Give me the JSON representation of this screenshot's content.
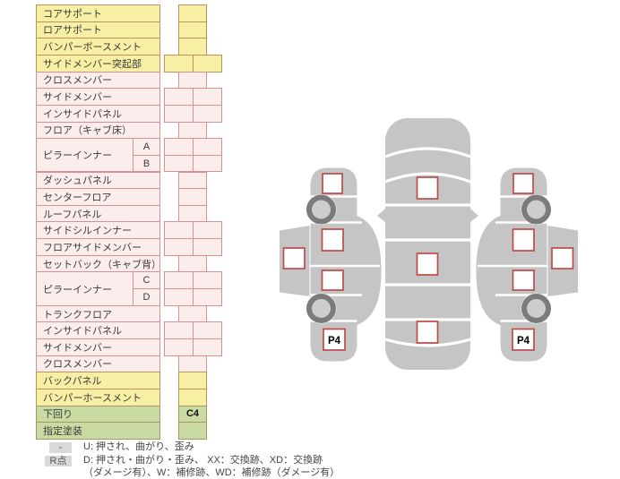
{
  "damage_table": {
    "rows": [
      {
        "label": "コアサポート",
        "palette": "yellow",
        "cells": 1
      },
      {
        "label": "ロアサポート",
        "palette": "yellow",
        "cells": 1
      },
      {
        "label": "バンパーボースメント",
        "palette": "yellow",
        "cells": 1
      },
      {
        "label": "サイドメンバー突起部",
        "palette": "yellow",
        "cells": 2
      },
      {
        "label": "クロスメンバー",
        "palette": "pink",
        "cells": 1
      },
      {
        "label": "サイドメンバー",
        "palette": "pink",
        "cells": 2
      },
      {
        "label": "インサイドパネル",
        "palette": "pink",
        "cells": 2
      },
      {
        "label": "フロア（キャブ床）",
        "palette": "pink",
        "cells": 1
      },
      {
        "label": "ピラーインナー",
        "sub": "A",
        "group": 2,
        "palette": "pink",
        "cells": 2
      },
      {
        "sub": "B",
        "palette": "pink",
        "cells": 2
      },
      {
        "label": "ダッシュパネル",
        "palette": "pink",
        "cells": 1
      },
      {
        "label": "センターフロア",
        "palette": "pink",
        "cells": 1
      },
      {
        "label": "ルーフパネル",
        "palette": "pink",
        "cells": 1
      },
      {
        "label": "サイドシルインナー",
        "palette": "pink",
        "cells": 2
      },
      {
        "label": "フロアサイドメンバー",
        "palette": "pink",
        "cells": 2
      },
      {
        "label": "セットバック（キャブ背）",
        "palette": "pink",
        "cells": 1
      },
      {
        "label": "ピラーインナー",
        "sub": "C",
        "group": 2,
        "palette": "pink",
        "cells": 2
      },
      {
        "sub": "D",
        "palette": "pink",
        "cells": 2
      },
      {
        "label": "トランクフロア",
        "palette": "pink",
        "cells": 1
      },
      {
        "label": "インサイドパネル",
        "palette": "pink",
        "cells": 2
      },
      {
        "label": "サイドメンバー",
        "palette": "pink",
        "cells": 2
      },
      {
        "label": "クロスメンバー",
        "palette": "pink",
        "cells": 1
      },
      {
        "label": "バックパネル",
        "palette": "yellow",
        "cells": 1
      },
      {
        "label": "バンパーホースメント",
        "palette": "yellow",
        "cells": 1
      },
      {
        "label": "下回り",
        "palette": "green",
        "cells": 1,
        "value": "C4"
      },
      {
        "label": "指定塗装",
        "palette": "green",
        "cells": 1
      }
    ],
    "palettes": {
      "yellow": {
        "bg": "#F7EFA4",
        "border": "#BE9064"
      },
      "pink": {
        "bg": "#FCEDED",
        "border": "#D89090"
      },
      "green": {
        "bg": "#C9DBA2",
        "border": "#AE9464"
      }
    }
  },
  "legend": {
    "items": [
      {
        "badge": "-",
        "text": "U: 押され、曲がり、歪み"
      },
      {
        "badge": "R点",
        "text": "D: 押され・曲がり・歪み、 XX：交換跡、XD：交換跡"
      },
      {
        "badge": "",
        "text": "（ダメージ有）、W：補修跡、WD：補修跡（ダメージ有）"
      }
    ]
  },
  "diagram": {
    "left_rear_fender_code": "P4",
    "right_rear_fender_code": "P4",
    "underbody_code": "C4",
    "body_color": "#C5C5C5",
    "marker_border_color": "#BE4A4A",
    "wheel_ring_color": "#7B7B7B",
    "wheel_hub_color": "#CDCDCD",
    "top_view_marker_slots": [
      "hood",
      "roof",
      "trunk"
    ],
    "side_view_marker_slots": [
      "front-fender",
      "front-door",
      "rear-door",
      "sill",
      "rear-fender"
    ]
  }
}
